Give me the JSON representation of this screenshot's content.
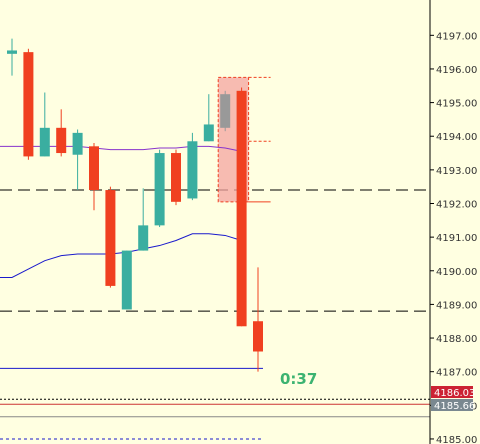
{
  "colors": {
    "background": "#ffffe1",
    "bull": "#3aaea0",
    "bear": "#f04020",
    "bull_dim": "#999999",
    "ma_fast": "#8833cc",
    "ma_slow": "#1a1acc",
    "level_line": "#000000",
    "bid_line": "#cc3333",
    "ask_line": "#888888",
    "bid_badge": "#cc2233",
    "ask_badge": "#7a8890",
    "countdown": "#3cb371",
    "box_fill": "#f4a4a0",
    "grid_axis": "#000000"
  },
  "chart_data": {
    "type": "candlestick",
    "title": "",
    "xlabel": "",
    "ylabel": "",
    "ylim": [
      4184.85,
      4198.05
    ],
    "y_ticks": [
      "4197.00",
      "4196.00",
      "4195.00",
      "4194.00",
      "4193.00",
      "4192.00",
      "4191.00",
      "4190.00",
      "4189.00",
      "4188.00",
      "4187.00",
      "4186.00",
      "4185.00"
    ],
    "candles": [
      {
        "open": 4196.45,
        "high": 4196.9,
        "low": 4195.8,
        "close": 4196.55
      },
      {
        "open": 4196.5,
        "high": 4196.6,
        "low": 4193.3,
        "close": 4193.4
      },
      {
        "open": 4193.4,
        "high": 4195.3,
        "low": 4193.4,
        "close": 4194.25
      },
      {
        "open": 4194.25,
        "high": 4194.8,
        "low": 4193.4,
        "close": 4193.5
      },
      {
        "open": 4193.45,
        "high": 4194.2,
        "low": 4192.4,
        "close": 4194.1
      },
      {
        "open": 4193.7,
        "high": 4193.8,
        "low": 4191.8,
        "close": 4192.4
      },
      {
        "open": 4192.4,
        "high": 4192.5,
        "low": 4189.5,
        "close": 4189.55
      },
      {
        "open": 4188.85,
        "high": 4190.6,
        "low": 4188.85,
        "close": 4190.6
      },
      {
        "open": 4190.6,
        "high": 4192.45,
        "low": 4190.6,
        "close": 4191.35
      },
      {
        "open": 4191.35,
        "high": 4193.6,
        "low": 4191.3,
        "close": 4193.5
      },
      {
        "open": 4193.5,
        "high": 4193.6,
        "low": 4191.95,
        "close": 4192.05
      },
      {
        "open": 4192.15,
        "high": 4194.1,
        "low": 4192.1,
        "close": 4193.85
      },
      {
        "open": 4193.85,
        "high": 4195.25,
        "low": 4193.85,
        "close": 4194.35
      },
      {
        "open": 4194.25,
        "high": 4195.35,
        "low": 4194.15,
        "close": 4195.25,
        "dim": true
      },
      {
        "open": 4195.35,
        "high": 4195.45,
        "low": 4188.35,
        "close": 4188.35
      },
      {
        "open": 4188.5,
        "high": 4190.1,
        "low": 4187.0,
        "close": 4187.6
      }
    ],
    "ma_fast": [
      4193.7,
      4193.7,
      4193.7,
      4193.7,
      4193.7,
      4193.65,
      4193.6,
      4193.6,
      4193.6,
      4193.65,
      4193.65,
      4193.7,
      4193.7,
      4193.65,
      4193.55
    ],
    "ma_slow": [
      4189.8,
      4190.05,
      4190.3,
      4190.45,
      4190.5,
      4190.5,
      4190.5,
      4190.55,
      4190.65,
      4190.75,
      4190.9,
      4191.1,
      4191.1,
      4191.05,
      4190.9
    ],
    "dashed_levels": [
      4192.4,
      4188.8
    ],
    "bid_line": 4186.03,
    "ask_line": 4185.66,
    "blue_line": 4187.1,
    "blue_dotted": 4185.0,
    "black_dotted": 4186.18,
    "box": {
      "from_index": 13,
      "to_index": 14,
      "top": 4195.75,
      "bottom": 4192.05
    },
    "box_marker_top": 4195.75,
    "box_marker_mid": 4193.85,
    "box_marker_red": 4192.05
  },
  "price_badges": {
    "bid": "4186.03",
    "ask": "4185.66"
  },
  "countdown": "0:37"
}
